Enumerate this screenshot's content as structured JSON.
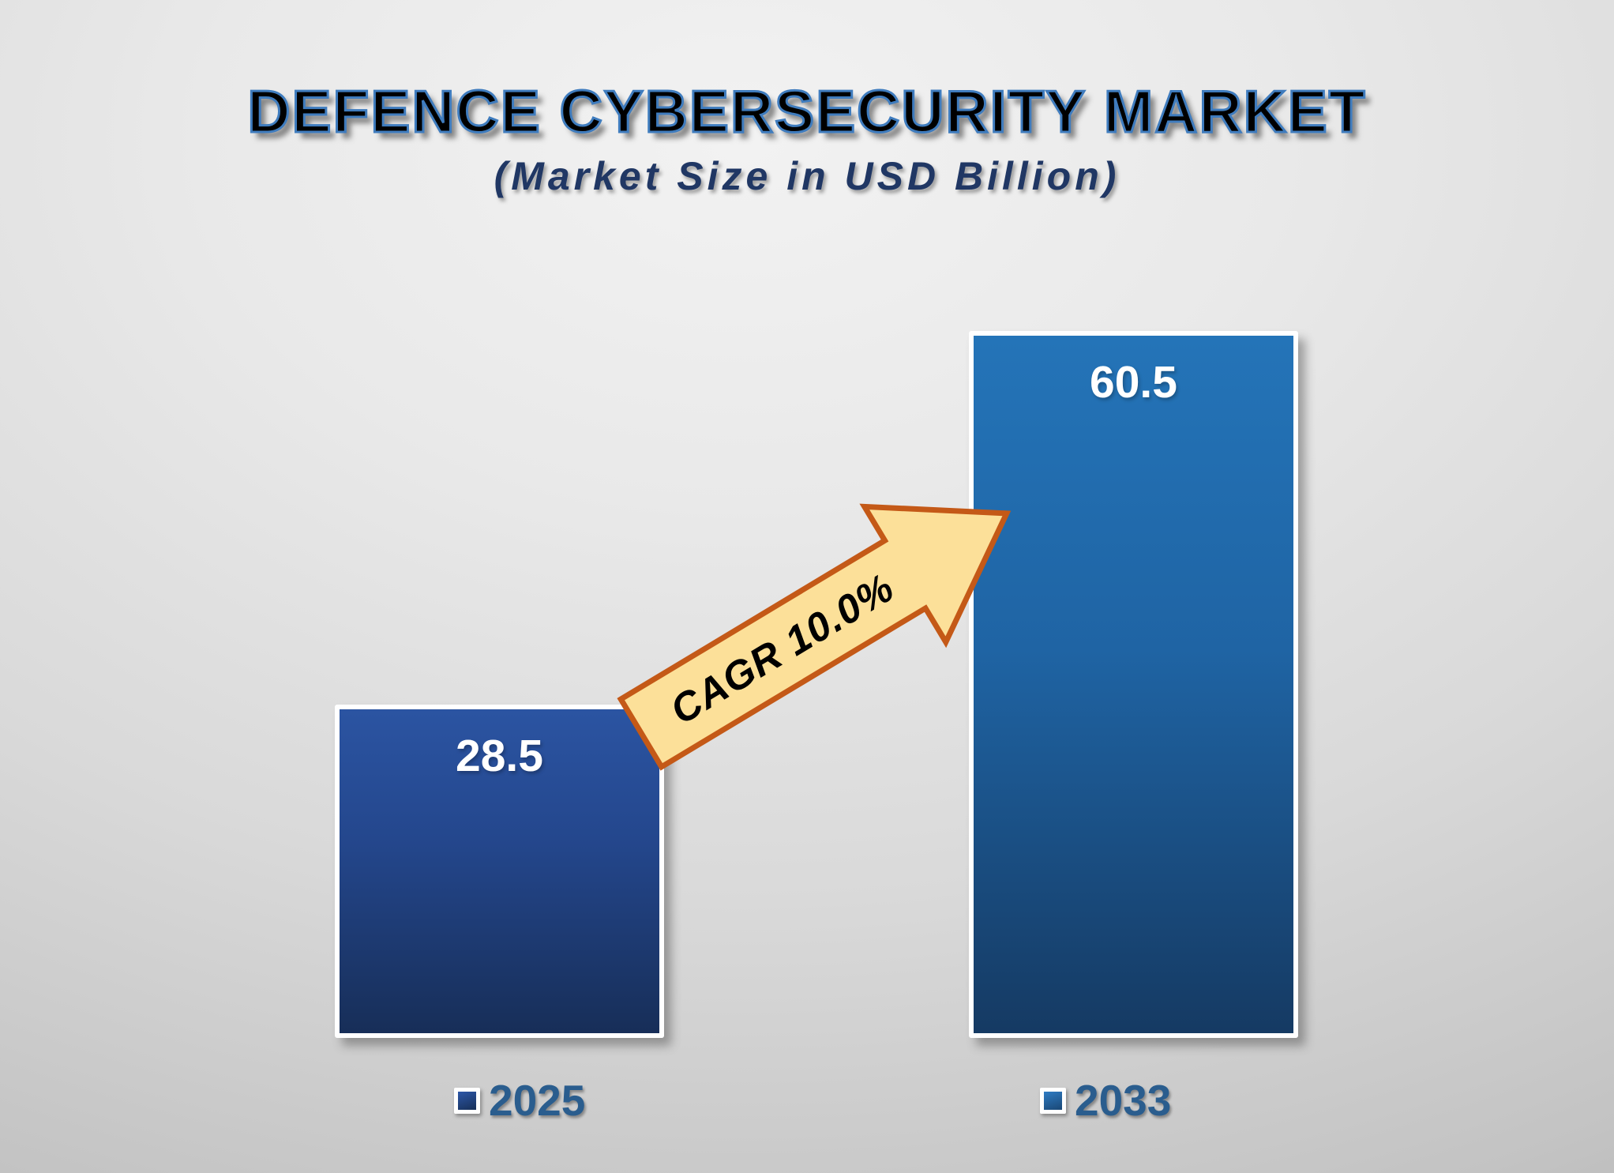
{
  "chart_data": {
    "type": "bar",
    "title": "DEFENCE CYBERSECURITY MARKET",
    "subtitle": "(Market Size in USD Billion)",
    "unit": "USD Billion",
    "categories": [
      "2025",
      "2033"
    ],
    "values": [
      28.5,
      60.5
    ],
    "value_labels": [
      "28.5",
      "60.5"
    ],
    "annotation": {
      "label": "CAGR 10.0%"
    },
    "legend": {
      "position": "bottom",
      "entries": [
        "2025",
        "2033"
      ]
    },
    "grid": false,
    "axes_visible": false,
    "ylim": [
      0,
      63
    ],
    "colors": {
      "bar_2025_top": "#2b54a2",
      "bar_2025_bottom": "#172e58",
      "bar_2033_top": "#2474b8",
      "bar_2033_bottom": "#153a63",
      "bar_border": "#ffffff",
      "value_label_color": "#ffffff",
      "arrow_fill": "#fce099",
      "arrow_border": "#c45917",
      "arrow_text_color": "#000000",
      "legend_text": "#2a5d8e",
      "title_fill": "#000000",
      "title_outline": "#3f7cbe",
      "subtitle_color": "#203764",
      "background_center": "#f2f2f2",
      "background_edge": "#a9a9a9"
    }
  }
}
